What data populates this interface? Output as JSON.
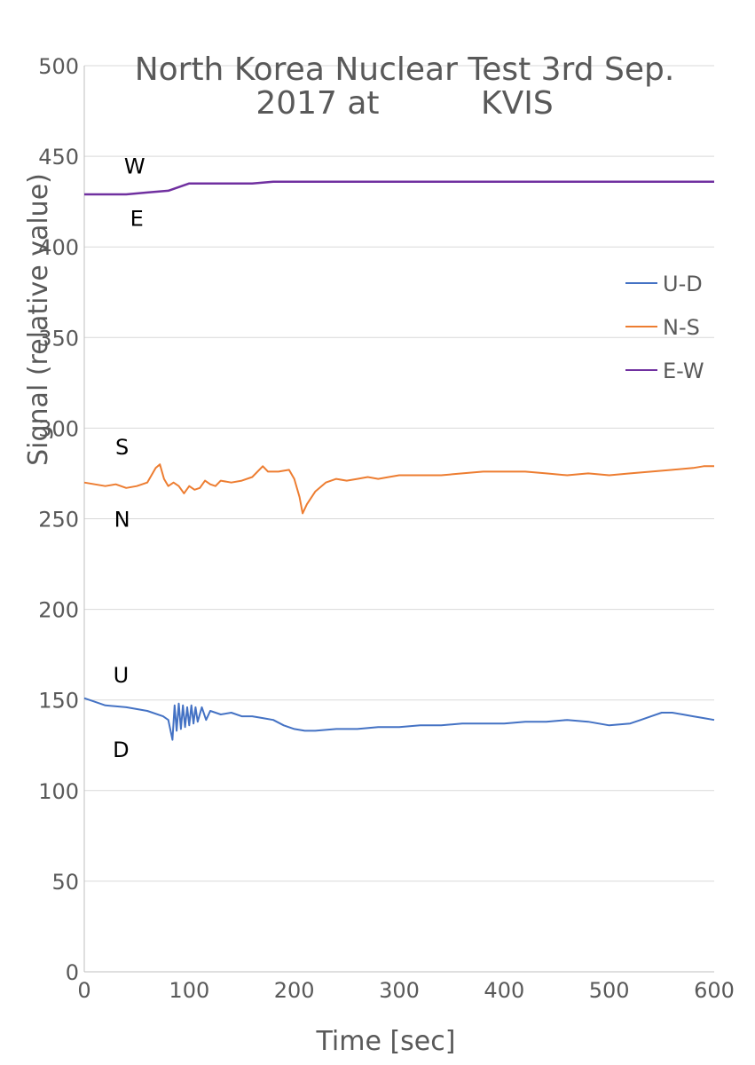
{
  "chart_data": {
    "type": "line",
    "title_line1": "North Korea Nuclear Test 3rd Sep.",
    "title_line2": "2017 at          KVIS",
    "xlabel": "Time [sec]",
    "ylabel": "Signal (relative value)",
    "xlim": [
      0,
      600
    ],
    "ylim": [
      0,
      500
    ],
    "xticks": [
      0,
      100,
      200,
      300,
      400,
      500,
      600
    ],
    "yticks": [
      0,
      50,
      100,
      150,
      200,
      250,
      300,
      350,
      400,
      450,
      500
    ],
    "grid": true,
    "legend_position": "right",
    "series": [
      {
        "name": "U-D",
        "color": "#4472C4",
        "points": [
          [
            0,
            151
          ],
          [
            10,
            149
          ],
          [
            20,
            147
          ],
          [
            40,
            146
          ],
          [
            60,
            144
          ],
          [
            75,
            141
          ],
          [
            80,
            139
          ],
          [
            84,
            128
          ],
          [
            86,
            147
          ],
          [
            88,
            133
          ],
          [
            90,
            148
          ],
          [
            92,
            134
          ],
          [
            94,
            147
          ],
          [
            96,
            135
          ],
          [
            98,
            146
          ],
          [
            100,
            136
          ],
          [
            102,
            147
          ],
          [
            104,
            137
          ],
          [
            106,
            146
          ],
          [
            108,
            138
          ],
          [
            112,
            146
          ],
          [
            116,
            139
          ],
          [
            120,
            144
          ],
          [
            130,
            142
          ],
          [
            140,
            143
          ],
          [
            150,
            141
          ],
          [
            160,
            141
          ],
          [
            170,
            140
          ],
          [
            180,
            139
          ],
          [
            190,
            136
          ],
          [
            200,
            134
          ],
          [
            210,
            133
          ],
          [
            220,
            133
          ],
          [
            240,
            134
          ],
          [
            260,
            134
          ],
          [
            280,
            135
          ],
          [
            300,
            135
          ],
          [
            320,
            136
          ],
          [
            340,
            136
          ],
          [
            360,
            137
          ],
          [
            380,
            137
          ],
          [
            400,
            137
          ],
          [
            420,
            138
          ],
          [
            440,
            138
          ],
          [
            460,
            139
          ],
          [
            480,
            138
          ],
          [
            500,
            136
          ],
          [
            520,
            137
          ],
          [
            530,
            139
          ],
          [
            540,
            141
          ],
          [
            550,
            143
          ],
          [
            560,
            143
          ],
          [
            570,
            142
          ],
          [
            580,
            141
          ],
          [
            590,
            140
          ],
          [
            600,
            139
          ]
        ]
      },
      {
        "name": "N-S",
        "color": "#ED7D31",
        "points": [
          [
            0,
            270
          ],
          [
            10,
            269
          ],
          [
            20,
            268
          ],
          [
            30,
            269
          ],
          [
            40,
            267
          ],
          [
            50,
            268
          ],
          [
            60,
            270
          ],
          [
            68,
            278
          ],
          [
            72,
            280
          ],
          [
            76,
            272
          ],
          [
            80,
            268
          ],
          [
            85,
            270
          ],
          [
            90,
            268
          ],
          [
            95,
            264
          ],
          [
            100,
            268
          ],
          [
            105,
            266
          ],
          [
            110,
            267
          ],
          [
            115,
            271
          ],
          [
            120,
            269
          ],
          [
            125,
            268
          ],
          [
            130,
            271
          ],
          [
            140,
            270
          ],
          [
            150,
            271
          ],
          [
            160,
            273
          ],
          [
            170,
            279
          ],
          [
            175,
            276
          ],
          [
            185,
            276
          ],
          [
            195,
            277
          ],
          [
            200,
            272
          ],
          [
            205,
            262
          ],
          [
            208,
            253
          ],
          [
            212,
            258
          ],
          [
            220,
            265
          ],
          [
            230,
            270
          ],
          [
            240,
            272
          ],
          [
            250,
            271
          ],
          [
            260,
            272
          ],
          [
            270,
            273
          ],
          [
            280,
            272
          ],
          [
            290,
            273
          ],
          [
            300,
            274
          ],
          [
            320,
            274
          ],
          [
            340,
            274
          ],
          [
            360,
            275
          ],
          [
            380,
            276
          ],
          [
            400,
            276
          ],
          [
            420,
            276
          ],
          [
            440,
            275
          ],
          [
            460,
            274
          ],
          [
            480,
            275
          ],
          [
            500,
            274
          ],
          [
            520,
            275
          ],
          [
            540,
            276
          ],
          [
            560,
            277
          ],
          [
            580,
            278
          ],
          [
            590,
            279
          ],
          [
            600,
            279
          ]
        ]
      },
      {
        "name": "E-W",
        "color": "#7030A0",
        "points": [
          [
            0,
            429
          ],
          [
            20,
            429
          ],
          [
            40,
            429
          ],
          [
            60,
            430
          ],
          [
            80,
            431
          ],
          [
            90,
            433
          ],
          [
            100,
            435
          ],
          [
            120,
            435
          ],
          [
            140,
            435
          ],
          [
            160,
            435
          ],
          [
            180,
            436
          ],
          [
            200,
            436
          ],
          [
            220,
            436
          ],
          [
            260,
            436
          ],
          [
            300,
            436
          ],
          [
            340,
            436
          ],
          [
            380,
            436
          ],
          [
            420,
            436
          ],
          [
            460,
            436
          ],
          [
            500,
            436
          ],
          [
            540,
            436
          ],
          [
            580,
            436
          ],
          [
            600,
            436
          ]
        ]
      }
    ],
    "annotations": [
      {
        "text": "W",
        "x": 48,
        "y": 445
      },
      {
        "text": "E",
        "x": 50,
        "y": 416
      },
      {
        "text": "S",
        "x": 36,
        "y": 290
      },
      {
        "text": "N",
        "x": 36,
        "y": 250
      },
      {
        "text": "U",
        "x": 35,
        "y": 164
      },
      {
        "text": "D",
        "x": 35,
        "y": 123
      }
    ]
  }
}
